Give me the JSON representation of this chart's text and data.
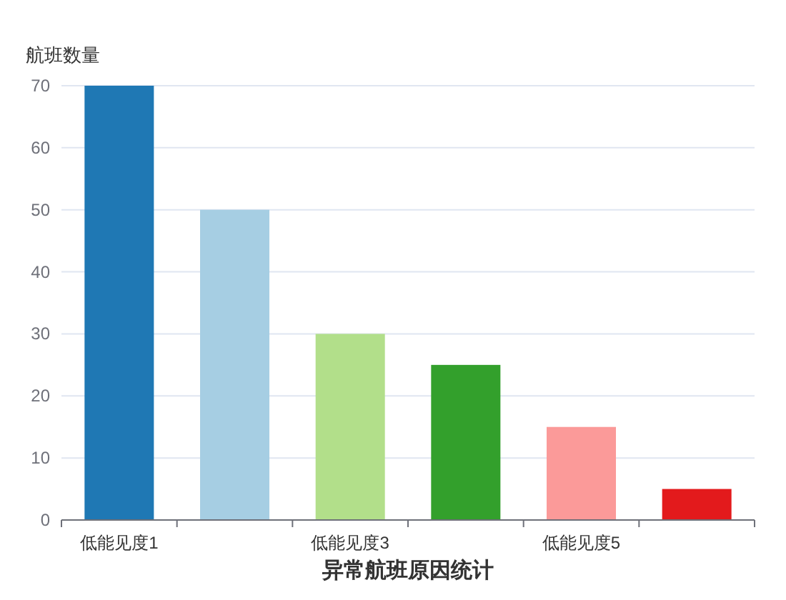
{
  "chart_data": {
    "type": "bar",
    "ylabel": "航班数量",
    "xlabel": "异常航班原因统计",
    "categories": [
      "低能见度1",
      null,
      "低能见度3",
      null,
      "低能见度5",
      null
    ],
    "values": [
      70,
      50,
      30,
      25,
      15,
      5
    ],
    "colors": [
      "#1f78b4",
      "#a6cee3",
      "#b2df8a",
      "#33a02c",
      "#fb9a99",
      "#e31a1c"
    ],
    "ylim": [
      0,
      70
    ],
    "yticks": [
      0,
      10,
      20,
      30,
      40,
      50,
      60,
      70
    ],
    "grid": "y"
  }
}
